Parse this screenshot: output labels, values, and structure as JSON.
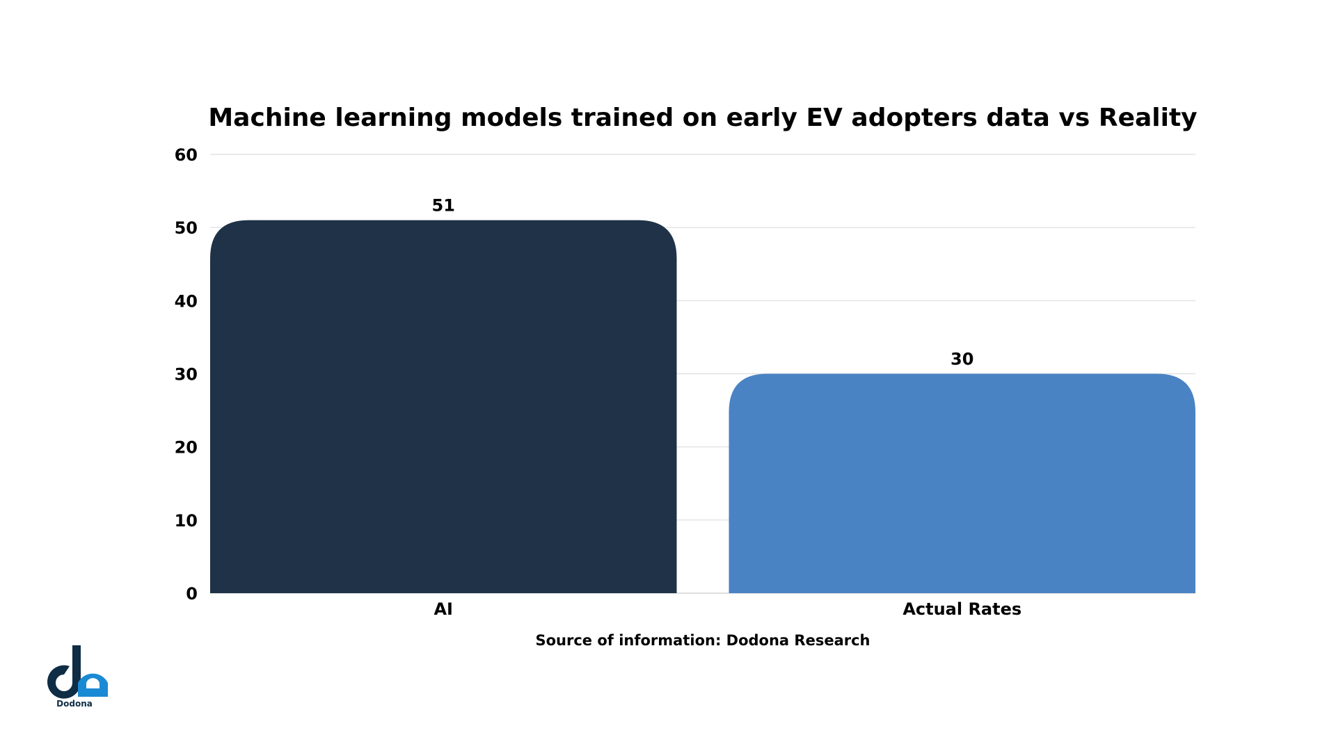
{
  "chart_data": {
    "type": "bar",
    "title": "Machine learning models trained on early EV adopters data vs Reality",
    "categories": [
      "AI",
      "Actual Rates"
    ],
    "values": [
      51,
      30
    ],
    "colors": [
      "#1f3247",
      "#4a83c4"
    ],
    "xlabel": "",
    "ylabel": "",
    "ylim": [
      0,
      60
    ],
    "yticks": [
      0,
      10,
      20,
      30,
      40,
      50,
      60
    ],
    "grid": true,
    "data_labels": [
      "51",
      "30"
    ]
  },
  "source": "Source of information: Dodona Research",
  "logo": {
    "text": "Dodona",
    "colors": [
      "#0f2d44",
      "#1a8ad4"
    ]
  }
}
